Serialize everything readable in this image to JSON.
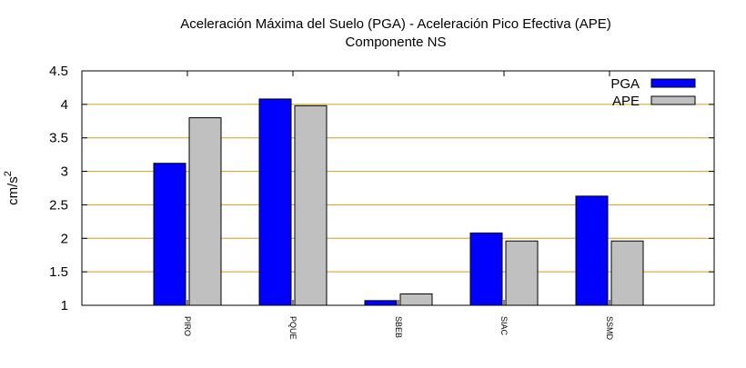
{
  "chart_data": {
    "type": "bar",
    "title": "Aceleración Máxima del Suelo (PGA) -  Aceleración Pico Efectiva (APE)",
    "subtitle": "Componente NS",
    "xlabel": "",
    "ylabel": "cm/s",
    "ylabel_superscript": "2",
    "categories": [
      "PIRO",
      "PQUE",
      "SBEB",
      "SIAC",
      "SSMD"
    ],
    "series": [
      {
        "name": "PGA",
        "color": "#0000ff",
        "values": [
          3.12,
          4.08,
          1.07,
          2.08,
          2.63
        ]
      },
      {
        "name": "APE",
        "color": "#c0c0c0",
        "values": [
          3.8,
          3.98,
          1.17,
          1.96,
          1.96
        ]
      }
    ],
    "ylim": [
      1,
      4.5
    ],
    "yticks": [
      1,
      1.5,
      2,
      2.5,
      3,
      3.5,
      4,
      4.5
    ],
    "ytick_labels": [
      "1",
      "1.5",
      "2",
      "2.5",
      "3",
      "3.5",
      "4",
      "4.5"
    ],
    "grid": true,
    "grid_color": "#d4a017",
    "legend_position": "top-right"
  }
}
